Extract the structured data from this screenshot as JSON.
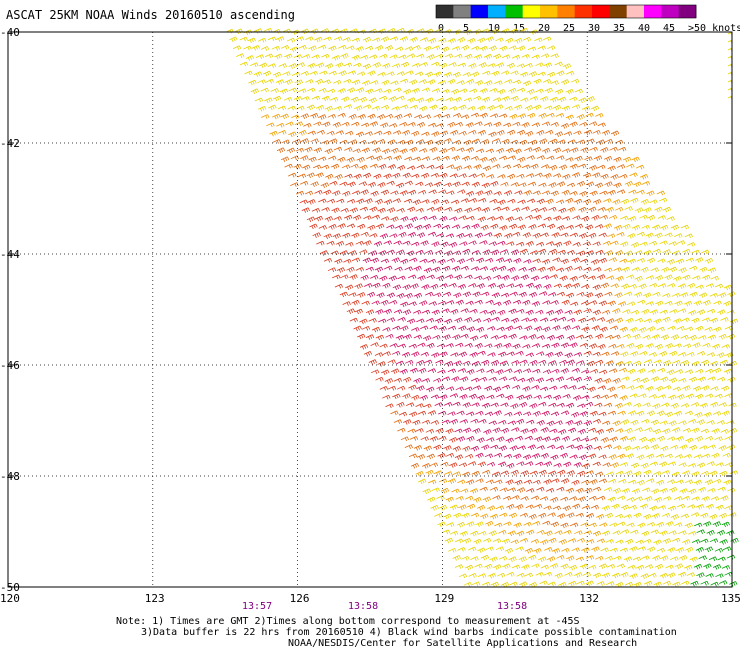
{
  "title": "ASCAT 25KM NOAA Winds 20160510 ascending",
  "legend": {
    "colors": [
      "#303030",
      "#808080",
      "#0000ff",
      "#00b0ff",
      "#00c000",
      "#ffff00",
      "#ffc000",
      "#ff8000",
      "#ff3000",
      "#ff0000",
      "#804000",
      "#ffc0c0",
      "#ff00ff",
      "#c000c0",
      "#800080"
    ],
    "tick_labels": [
      "0",
      "5",
      "10",
      "15",
      "20",
      "25",
      "30",
      "35",
      "40",
      "45",
      ">50 knots"
    ]
  },
  "map": {
    "lon_labels": [
      "120",
      "123",
      "126",
      "129",
      "132",
      "135"
    ],
    "lat_labels": [
      "-40",
      "-42",
      "-44",
      "-46",
      "-48",
      "-50"
    ],
    "time_labels": [
      "13:57",
      "13:58",
      "13:58"
    ]
  },
  "notes": {
    "line1": "Note: 1) Times are GMT 2)Times along bottom correspond to measurement at -45S",
    "line2": "3)Data buffer is 22 hrs from 20160510 4) Black wind barbs indicate possible contamination",
    "credit": "NOAA/NESDIS/Center for Satellite Applications and Research"
  },
  "barb_colors": {
    "yellow": "#e8d400",
    "orange": "#f0a000",
    "dark_orange": "#e06a10",
    "red": "#d83a20",
    "magenta": "#cc1060",
    "green": "#00a000"
  }
}
